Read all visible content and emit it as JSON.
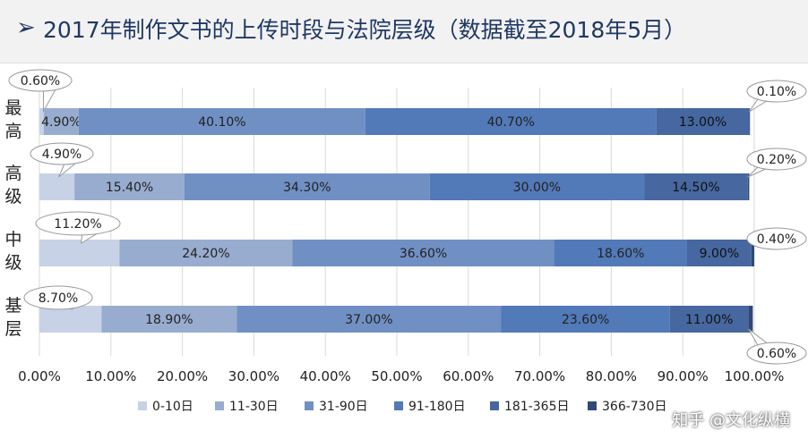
{
  "title": "2017年制作文书的上传时段与法院层级（数据截至2018年5月）",
  "watermark": "知乎 @文化纵横",
  "chart_data": {
    "type": "bar",
    "orientation": "horizontal",
    "stacked": true,
    "categories": [
      "最高",
      "高级",
      "中级",
      "基层"
    ],
    "series": [
      {
        "name": "0-10日",
        "color": "#c8d2e6",
        "values": [
          0.6,
          4.9,
          11.2,
          8.7
        ]
      },
      {
        "name": "11-30日",
        "color": "#98accf",
        "values": [
          4.9,
          15.4,
          24.2,
          18.9
        ]
      },
      {
        "name": "31-90日",
        "color": "#7090c4",
        "values": [
          40.1,
          34.3,
          36.6,
          37.0
        ]
      },
      {
        "name": "91-180日",
        "color": "#5279b8",
        "values": [
          40.7,
          30.0,
          18.6,
          23.6
        ]
      },
      {
        "name": "181-365日",
        "color": "#4667a0",
        "values": [
          13.0,
          14.5,
          9.0,
          11.0
        ]
      },
      {
        "name": "366-730日",
        "color": "#2f4978",
        "values": [
          0.1,
          0.2,
          0.4,
          0.6
        ]
      }
    ],
    "data_labels": [
      [
        "0.60%",
        "4.90%",
        "40.10%",
        "40.70%",
        "13.00%",
        "0.10%"
      ],
      [
        "4.90%",
        "15.40%",
        "34.30%",
        "30.00%",
        "14.50%",
        "0.20%"
      ],
      [
        "11.20%",
        "24.20%",
        "36.60%",
        "18.60%",
        "9.00%",
        "0.40%"
      ],
      [
        "8.70%",
        "18.90%",
        "37.00%",
        "23.60%",
        "11.00%",
        "0.60%"
      ]
    ],
    "xlim": [
      0,
      100
    ],
    "xticks": [
      "0.00%",
      "10.00%",
      "20.00%",
      "30.00%",
      "40.00%",
      "50.00%",
      "60.00%",
      "70.00%",
      "80.00%",
      "90.00%",
      "100.00%"
    ],
    "grid": true,
    "legend": "bottom"
  }
}
